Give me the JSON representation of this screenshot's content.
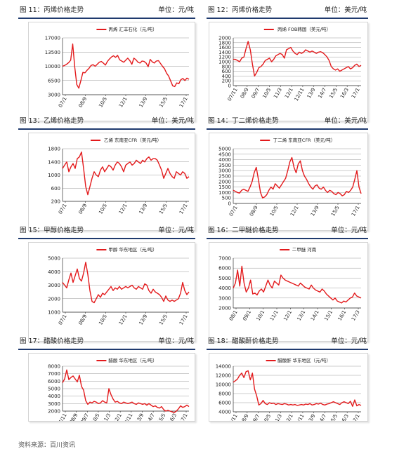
{
  "figures": [
    {
      "label": "图 11：",
      "title": "丙烯价格走势",
      "unit": "单位：元/吨",
      "legend": "丙烯 汇丰石化（元/吨）",
      "chart_data": {
        "type": "line",
        "series_name": "丙烯 汇丰石化（元/吨）",
        "yticks": [
          3000,
          6500,
          10000,
          13500,
          17000
        ],
        "ylim": [
          3000,
          17000
        ],
        "xticks": [
          "07/1",
          "08/9",
          "10/5",
          "12/1",
          "13/9",
          "15/5",
          "17/1"
        ],
        "values": [
          10000,
          10200,
          10500,
          10900,
          11500,
          15500,
          9800,
          5500,
          4600,
          6500,
          8500,
          8400,
          9000,
          9500,
          10200,
          10400,
          10000,
          10500,
          11000,
          11200,
          10800,
          10300,
          11200,
          11800,
          12300,
          12600,
          12200,
          12700,
          11600,
          11300,
          11000,
          11500,
          12000,
          11400,
          10500,
          12000,
          11600,
          11000,
          10800,
          11300,
          11200,
          10800,
          9900,
          11700,
          11100,
          10800,
          11300,
          11400,
          10700,
          10000,
          9400,
          8300,
          7600,
          6400,
          5200,
          5000,
          5900,
          5700,
          6700,
          7000,
          6500,
          7100,
          6800
        ]
      }
    },
    {
      "label": "图 12：",
      "title": "丙烯价格走势",
      "unit": "单位：美元/吨",
      "legend": "丙烯 FOB韩国（美元/吨）",
      "chart_data": {
        "type": "line",
        "series_name": "丙烯 FOB韩国（美元/吨）",
        "yticks": [
          0,
          200,
          400,
          600,
          800,
          1000,
          1200,
          1400,
          1600,
          1800,
          2000
        ],
        "ylim": [
          0,
          2000
        ],
        "xticks": [
          "07/11",
          "08/9",
          "09/7",
          "10/5",
          "11/3",
          "12/1",
          "12/11",
          "13/9",
          "14/7",
          "15/5",
          "16/3",
          "17/1"
        ],
        "values": [
          1100,
          1100,
          1050,
          1000,
          1150,
          1200,
          1550,
          1850,
          1500,
          900,
          400,
          550,
          750,
          800,
          900,
          1050,
          1100,
          1150,
          1000,
          1100,
          1250,
          1300,
          1350,
          1300,
          1150,
          1500,
          1550,
          1600,
          1450,
          1350,
          1300,
          1400,
          1350,
          1400,
          1500,
          1450,
          1400,
          1450,
          1400,
          1350,
          1400,
          1420,
          1380,
          1300,
          1200,
          1050,
          800,
          700,
          650,
          700,
          600,
          650,
          700,
          750,
          800,
          700,
          750,
          850,
          900,
          800,
          850
        ]
      }
    },
    {
      "label": "图 13：",
      "title": "乙烯价格走势",
      "unit": "单位：美元/吨",
      "legend": "乙烯 东南亚CFR（美元/吨）",
      "chart_data": {
        "type": "line",
        "series_name": "乙烯 东南亚CFR（美元/吨）",
        "yticks": [
          200,
          600,
          1000,
          1400,
          1800
        ],
        "ylim": [
          200,
          1800
        ],
        "xticks": [
          "07/1",
          "08/9",
          "10/5",
          "12/1",
          "13/9",
          "15/5",
          "17/1"
        ],
        "values": [
          1200,
          1300,
          1400,
          1100,
          1250,
          1350,
          1200,
          1500,
          1550,
          1700,
          1200,
          650,
          400,
          650,
          900,
          1100,
          1000,
          950,
          1150,
          1250,
          1100,
          1200,
          1300,
          1250,
          1150,
          1300,
          1400,
          1350,
          1250,
          1100,
          1300,
          1350,
          1400,
          1300,
          1350,
          1450,
          1400,
          1350,
          1450,
          1400,
          1500,
          1550,
          1450,
          1500,
          1500,
          1450,
          1300,
          1150,
          900,
          1050,
          1200,
          1050,
          950,
          900,
          1100,
          1050,
          1000,
          1100,
          1050,
          900,
          950
        ]
      }
    },
    {
      "label": "图 14：",
      "title": "丁二烯价格走势",
      "unit": "单位：美元/吨",
      "legend": "丁二烯 东南亚CFR（美元/吨）",
      "chart_data": {
        "type": "line",
        "series_name": "丁二烯 东南亚CFR（美元/吨）",
        "yticks": [
          0,
          500,
          1000,
          1500,
          2000,
          2500,
          3000,
          3500,
          4000,
          4500,
          5000
        ],
        "ylim": [
          0,
          5000
        ],
        "xticks": [
          "07/1",
          "08/9",
          "10/5",
          "12/1",
          "13/9",
          "15/5",
          "17/1"
        ],
        "values": [
          1200,
          1100,
          1000,
          950,
          1200,
          1300,
          1200,
          1100,
          1500,
          2000,
          2800,
          3300,
          2200,
          1000,
          500,
          600,
          800,
          1200,
          1500,
          1300,
          1800,
          1600,
          1400,
          1700,
          2000,
          2300,
          3000,
          3800,
          4200,
          3300,
          2800,
          3600,
          3900,
          3000,
          2500,
          2200,
          1800,
          1500,
          1300,
          1600,
          1700,
          1400,
          1300,
          1500,
          1200,
          1000,
          1200,
          1100,
          900,
          800,
          1000,
          900,
          700,
          800,
          1100,
          1000,
          1200,
          1500,
          2200,
          3000,
          1500,
          900
        ]
      }
    },
    {
      "label": "图 15：",
      "title": "甲醇价格走势",
      "unit": "单位：元/吨",
      "legend": "甲醇 华东地区（元/吨）",
      "chart_data": {
        "type": "line",
        "series_name": "甲醇 华东地区（元/吨）",
        "yticks": [
          1000,
          2000,
          3000,
          4000,
          5000
        ],
        "ylim": [
          1000,
          5000
        ],
        "xticks": [
          "07/1",
          "08/9",
          "10/5",
          "12/1",
          "13/9",
          "15/5",
          "17/1"
        ],
        "values": [
          3200,
          3000,
          2800,
          3400,
          3900,
          3200,
          3700,
          4200,
          3500,
          3300,
          3900,
          4700,
          3800,
          2600,
          1800,
          1700,
          2000,
          2300,
          2100,
          2400,
          2300,
          2500,
          2700,
          2900,
          2600,
          2800,
          2700,
          2900,
          2700,
          2800,
          2900,
          2800,
          2900,
          3000,
          2800,
          2700,
          2900,
          2800,
          2700,
          3100,
          3000,
          2600,
          2400,
          2700,
          2500,
          2400,
          2300,
          2100,
          1800,
          2200,
          1900,
          1800,
          1900,
          1800,
          1900,
          2000,
          2400,
          3200,
          2600,
          2300,
          2500
        ]
      }
    },
    {
      "label": "图 16：",
      "title": "二甲醚价格走势",
      "unit": "单位：元/吨",
      "legend": "二甲醚 河南",
      "chart_data": {
        "type": "line",
        "series_name": "二甲醚 河南",
        "yticks": [
          2000,
          3000,
          4000,
          5000,
          6000,
          7000
        ],
        "ylim": [
          2000,
          7000
        ],
        "xticks": [
          "08/1",
          "09/1",
          "10/1",
          "11/1",
          "12/1",
          "13/1",
          "14/1",
          "15/1",
          "16/1",
          "17/3"
        ],
        "values": [
          4000,
          4500,
          5800,
          4200,
          6200,
          4500,
          3600,
          4000,
          4800,
          3400,
          3500,
          3300,
          3700,
          3900,
          3600,
          4200,
          4800,
          4300,
          4000,
          4700,
          4500,
          4300,
          5300,
          5000,
          4800,
          4700,
          4600,
          4500,
          4400,
          4300,
          4200,
          4500,
          4300,
          4100,
          4000,
          3900,
          4300,
          4000,
          3800,
          3700,
          3600,
          3900,
          3700,
          3400,
          3200,
          3000,
          2800,
          3000,
          2700,
          2600,
          2500,
          2700,
          2600,
          2800,
          3000,
          3100,
          3500,
          3200,
          3100,
          3000
        ]
      }
    },
    {
      "label": "图 17：",
      "title": "醋酸价格走势",
      "unit": "单位：元/吨",
      "legend": "醋酸 华东地区（元/吨）",
      "chart_data": {
        "type": "line",
        "series_name": "醋酸 华东地区（元/吨）",
        "yticks": [
          2000,
          3000,
          4000,
          5000,
          6000,
          7000,
          8000
        ],
        "ylim": [
          2000,
          8000
        ],
        "xticks": [
          "07/11",
          "08/9",
          "09/7",
          "10/5",
          "11/3",
          "12/1",
          "12/11",
          "13/9",
          "14/7",
          "15/5",
          "16/3",
          "17/1"
        ],
        "values": [
          5800,
          6300,
          7500,
          6200,
          6500,
          6700,
          6300,
          5900,
          6800,
          5300,
          4800,
          3400,
          2900,
          3200,
          3100,
          3300,
          3200,
          3000,
          3100,
          3400,
          3200,
          3100,
          5000,
          4200,
          3600,
          3200,
          3300,
          3100,
          3000,
          3200,
          3100,
          3000,
          3100,
          3200,
          3000,
          2900,
          3100,
          3000,
          2900,
          3000,
          2800,
          3000,
          2800,
          2600,
          2700,
          2500,
          2400,
          2600,
          2200,
          2000,
          2100,
          2000,
          1900,
          1800,
          2000,
          2300,
          2700,
          2500,
          2600,
          2800,
          2600
        ]
      }
    },
    {
      "label": "图 18：",
      "title": "醋酸酐价格走势",
      "unit": "单位：元/吨",
      "legend": "醋酸酐 华东地区（元/吨）",
      "chart_data": {
        "type": "line",
        "series_name": "醋酸酐 华东地区（元/吨）",
        "yticks": [
          4000,
          6000,
          8000,
          10000,
          12000,
          14000
        ],
        "ylim": [
          4000,
          14000
        ],
        "xticks": [
          "07/11",
          "08/9",
          "09/7",
          "10/5",
          "11/3",
          "12/1",
          "12/11",
          "13/9",
          "14/7",
          "15/5",
          "16/3",
          "17/1"
        ],
        "values": [
          10500,
          10800,
          11200,
          12000,
          12500,
          11500,
          12800,
          13000,
          11000,
          12500,
          9000,
          7500,
          5500,
          5800,
          6500,
          5800,
          5600,
          6000,
          5800,
          5900,
          5600,
          5800,
          5700,
          5600,
          5800,
          5700,
          5500,
          5600,
          5500,
          5600,
          5400,
          5500,
          5600,
          5500,
          5700,
          5600,
          5800,
          5500,
          5600,
          5800,
          5700,
          5900,
          5600,
          5500,
          5700,
          5800,
          6000,
          6200,
          6000,
          5800,
          5600,
          6000,
          6200,
          6000,
          5800,
          6300,
          5200,
          6600,
          5300,
          5600,
          5400
        ]
      }
    }
  ],
  "source": "资料来源：百川资讯",
  "colors": {
    "line": "#e31a1c",
    "rule": "#1f3a6e",
    "grid": "#9a9a9a"
  }
}
